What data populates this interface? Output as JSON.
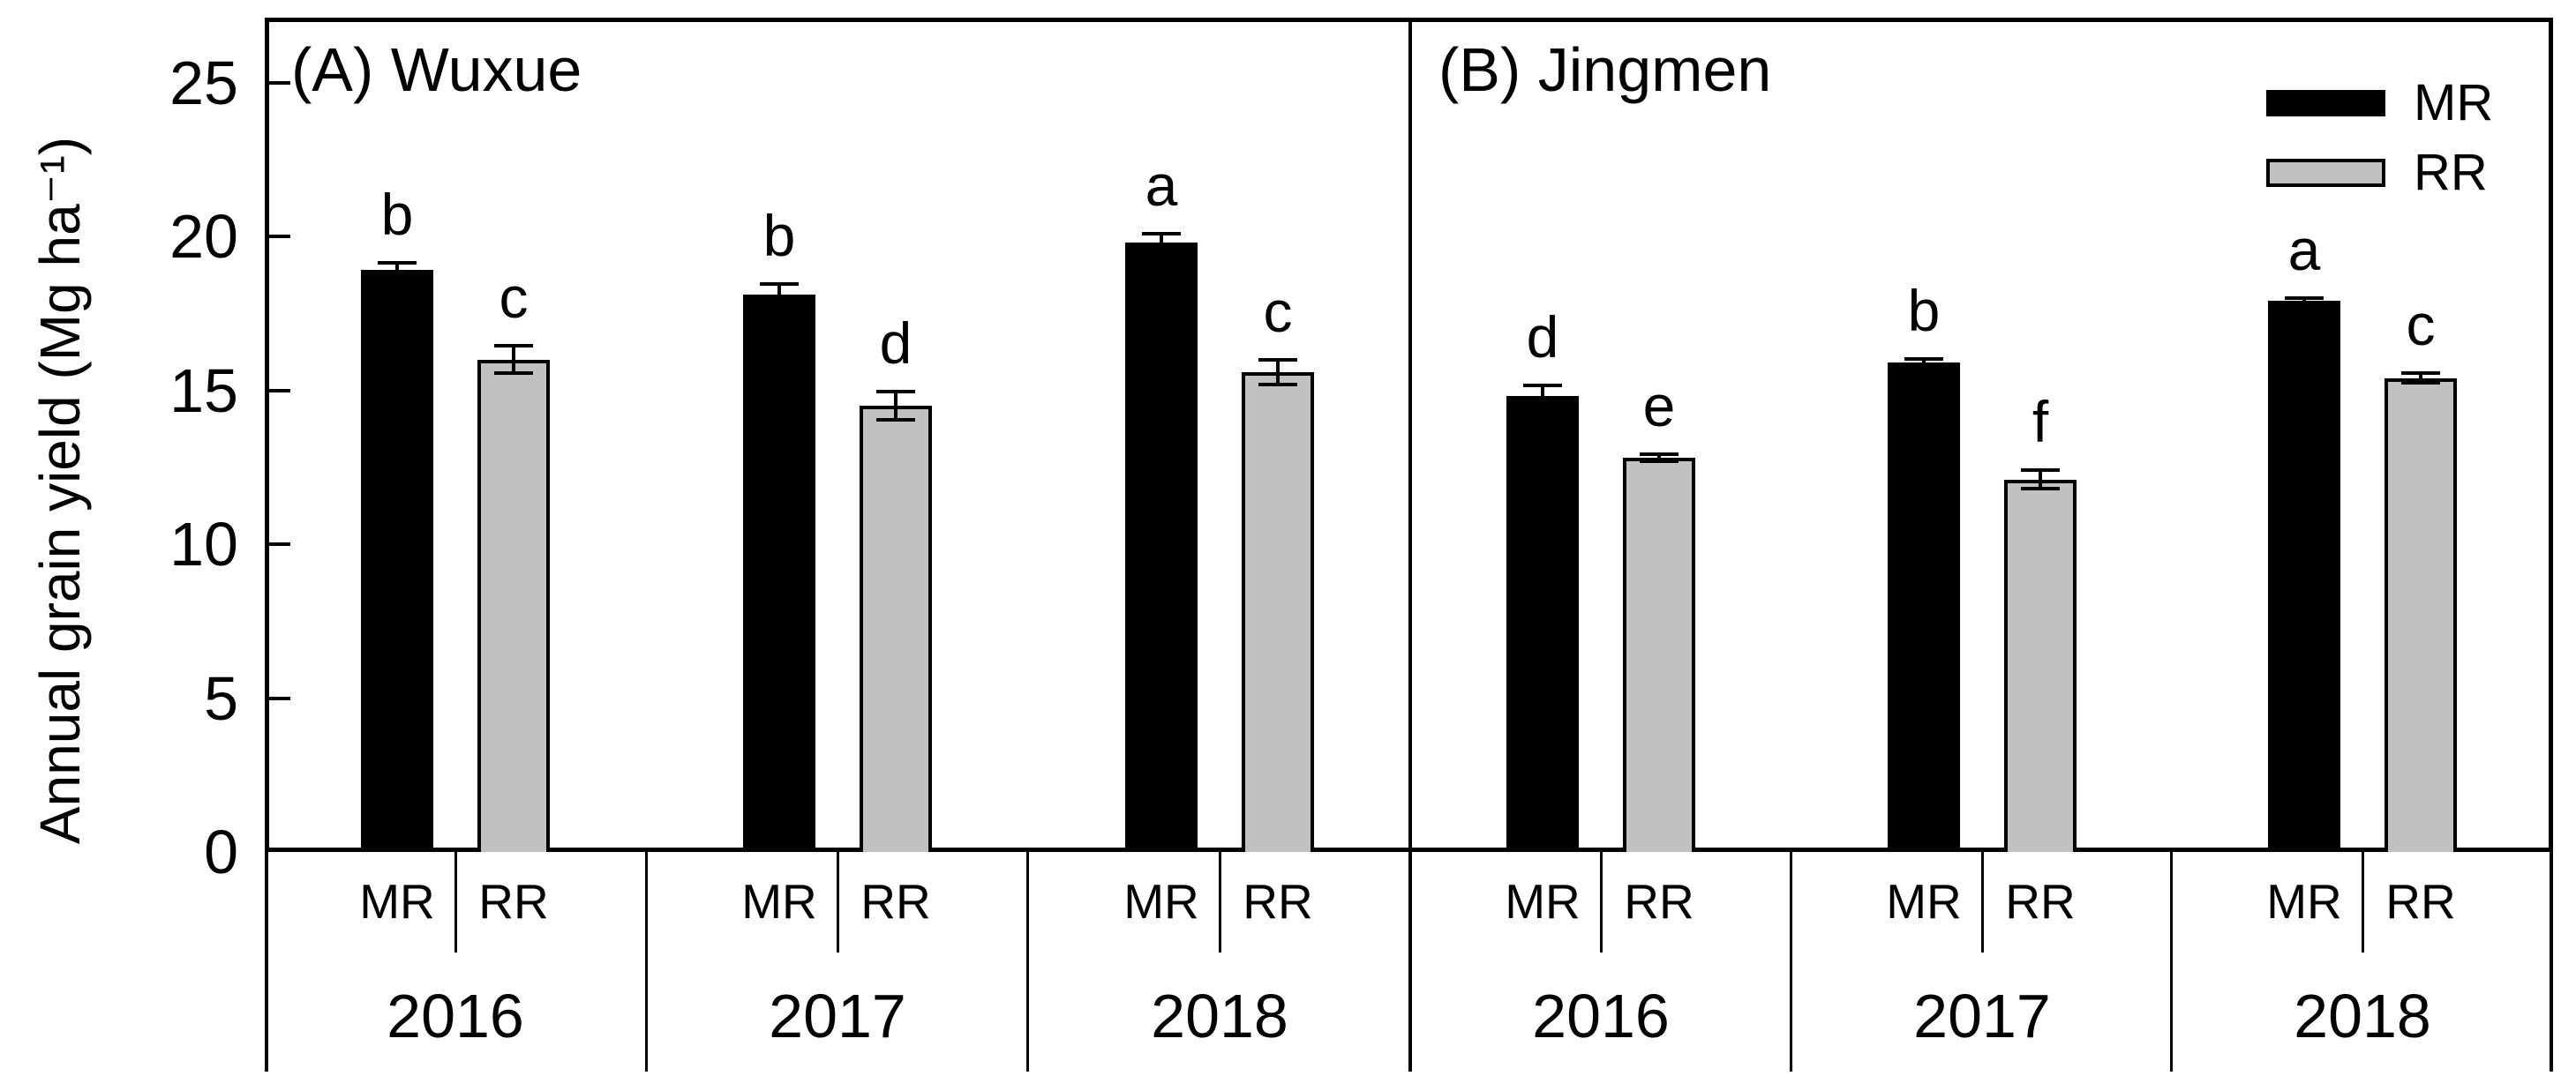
{
  "figure": {
    "y_axis_label": "Annual grain yield (Mg ha⁻¹)",
    "legend": [
      {
        "label": "MR",
        "color": "#000000"
      },
      {
        "label": "RR",
        "color": "#c1c1c1"
      }
    ],
    "colors": {
      "mr_fill": "#000000",
      "rr_fill": "#c1c1c1",
      "line": "#000000",
      "background": "#ffffff"
    }
  },
  "chart_data": {
    "type": "bar",
    "title": "",
    "xlabel": "",
    "ylabel": "Annual grain yield (Mg ha⁻¹)",
    "ylim": [
      0,
      27
    ],
    "y_ticks": [
      0,
      5,
      10,
      15,
      20,
      25
    ],
    "grid": false,
    "legend_position": "top-right",
    "error_bars": true,
    "panels": [
      {
        "label": "(A) Wuxue",
        "categories": [
          "2016",
          "2017",
          "2018"
        ],
        "series": [
          {
            "name": "MR",
            "values": [
              18.9,
              18.1,
              19.8
            ],
            "errors": [
              0.25,
              0.35,
              0.3
            ],
            "sig_letters": [
              "b",
              "b",
              "a"
            ]
          },
          {
            "name": "RR",
            "values": [
              16.0,
              14.5,
              15.6
            ],
            "errors": [
              0.45,
              0.45,
              0.4
            ],
            "sig_letters": [
              "c",
              "d",
              "c"
            ]
          }
        ]
      },
      {
        "label": "(B) Jingmen",
        "categories": [
          "2016",
          "2017",
          "2018"
        ],
        "series": [
          {
            "name": "MR",
            "values": [
              14.8,
              15.9,
              17.9
            ],
            "errors": [
              0.35,
              0.12,
              0.1
            ],
            "sig_letters": [
              "d",
              "b",
              "a"
            ]
          },
          {
            "name": "RR",
            "values": [
              12.8,
              12.1,
              15.4
            ],
            "errors": [
              0.12,
              0.3,
              0.15
            ],
            "sig_letters": [
              "e",
              "f",
              "c"
            ]
          }
        ]
      }
    ]
  }
}
